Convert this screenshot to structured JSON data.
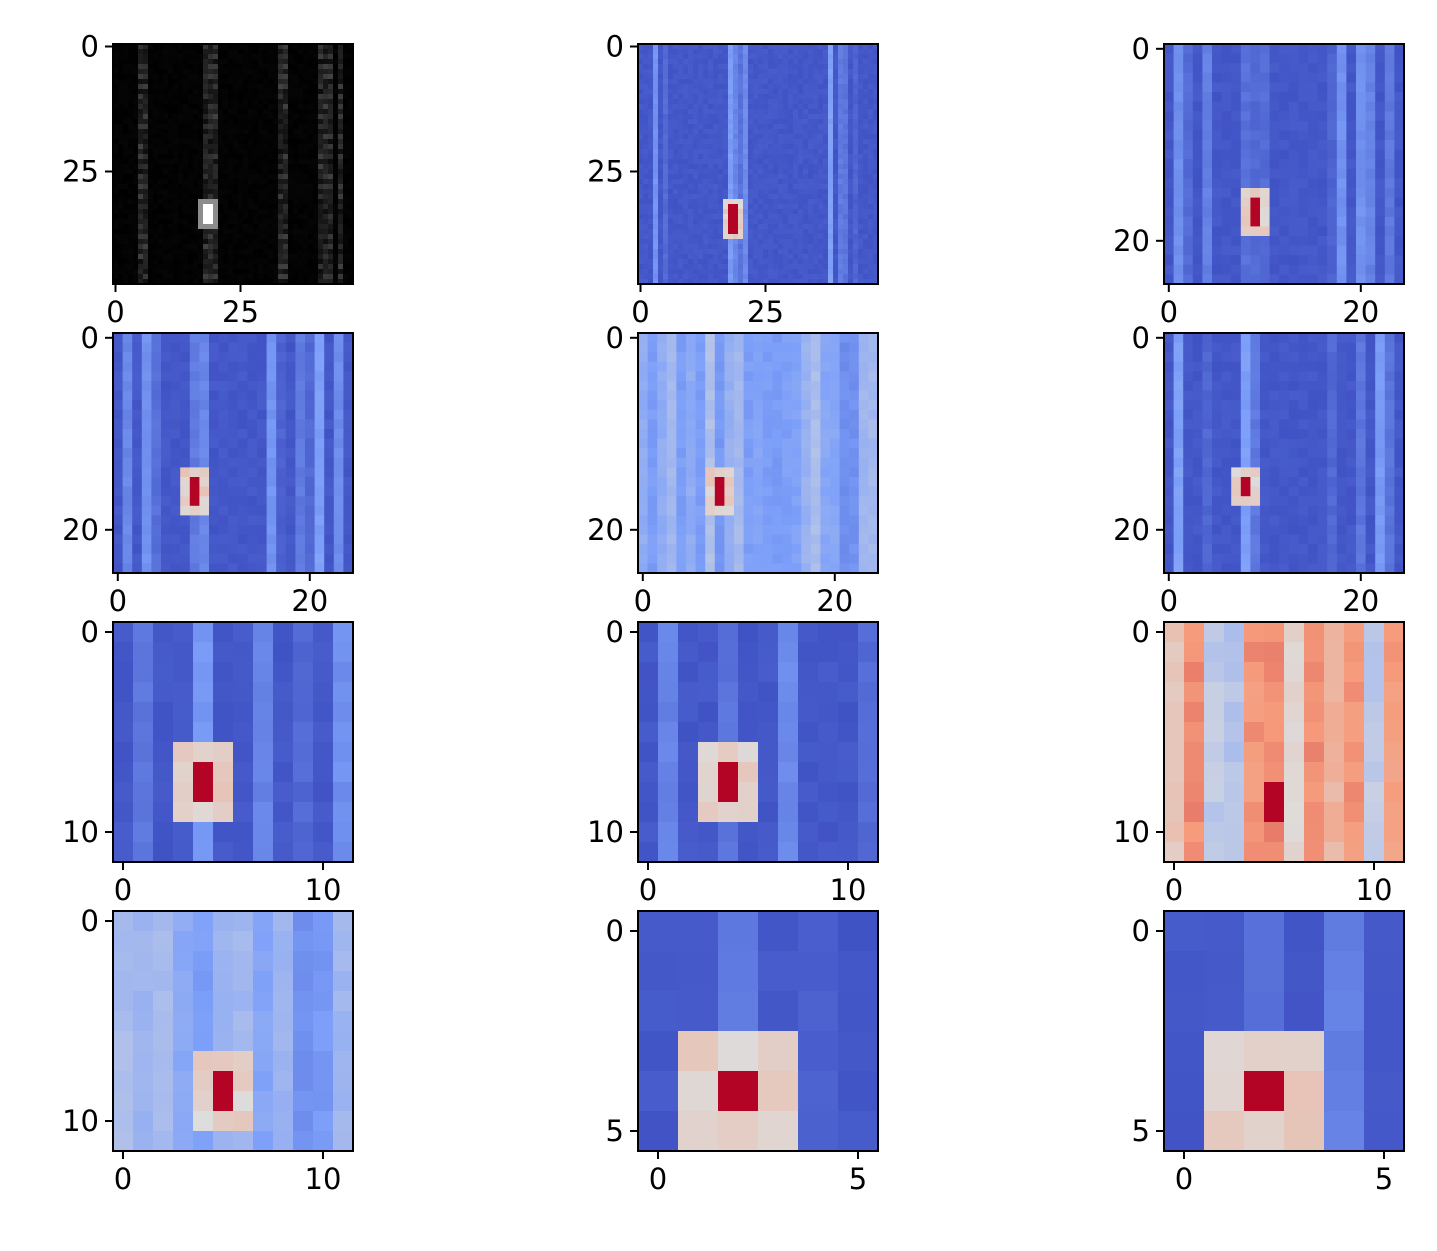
{
  "chart_data": [
    {
      "type": "heatmap",
      "colormap": "gray",
      "rows": 48,
      "cols": 48,
      "xlim": [
        -0.5,
        47.5
      ],
      "ylim": [
        47.5,
        -0.5
      ],
      "x_ticks": [
        0,
        25
      ],
      "y_ticks": [
        0,
        25
      ],
      "x_tick_labels": [
        "0",
        "25"
      ],
      "y_tick_labels": [
        "0",
        "25"
      ],
      "stripes": [
        5,
        6,
        18,
        19,
        20,
        33,
        34,
        41,
        42,
        43,
        45
      ],
      "hotspot": {
        "row": 32,
        "col": 18,
        "h": 4,
        "w": 2
      }
    },
    {
      "type": "heatmap",
      "colormap": "coolwarm",
      "rows": 48,
      "cols": 48,
      "xlim": [
        -0.5,
        47.5
      ],
      "ylim": [
        47.5,
        -0.5
      ],
      "x_ticks": [
        0,
        25
      ],
      "y_ticks": [
        0,
        25
      ],
      "x_tick_labels": [
        "0",
        "25"
      ],
      "y_tick_labels": [
        "0",
        "25"
      ],
      "stripes": [
        3,
        5,
        18,
        19,
        20,
        21,
        38,
        40,
        41,
        43
      ],
      "hotspot": {
        "row": 32,
        "col": 18,
        "h": 6,
        "w": 2
      }
    },
    {
      "type": "heatmap",
      "colormap": "coolwarm",
      "rows": 25,
      "cols": 25,
      "xlim": [
        -0.5,
        24.5
      ],
      "ylim": [
        24.5,
        -0.5
      ],
      "x_ticks": [
        0,
        20
      ],
      "y_ticks": [
        0,
        20
      ],
      "x_tick_labels": [
        "0",
        "20"
      ],
      "y_tick_labels": [
        "0",
        "20"
      ],
      "stripes": [
        1,
        2,
        4,
        8,
        9,
        10,
        17,
        18,
        20,
        21,
        23
      ],
      "hotspot": {
        "row": 16,
        "col": 9,
        "h": 3,
        "w": 1
      }
    },
    {
      "type": "heatmap",
      "colormap": "coolwarm",
      "rows": 25,
      "cols": 25,
      "xlim": [
        -0.5,
        24.5
      ],
      "ylim": [
        24.5,
        -0.5
      ],
      "x_ticks": [
        0,
        20
      ],
      "y_ticks": [
        0,
        20
      ],
      "x_tick_labels": [
        "0",
        "20"
      ],
      "y_tick_labels": [
        "0",
        "20"
      ],
      "stripes": [
        1,
        3,
        4,
        8,
        9,
        16,
        17,
        19,
        20,
        21,
        23
      ],
      "hotspot": {
        "row": 15,
        "col": 8,
        "h": 3,
        "w": 1
      }
    },
    {
      "type": "heatmap",
      "colormap": "coolwarm",
      "rows": 25,
      "cols": 25,
      "xlim": [
        -0.5,
        24.5
      ],
      "ylim": [
        24.5,
        -0.5
      ],
      "x_ticks": [
        0,
        20
      ],
      "y_ticks": [
        0,
        20
      ],
      "x_tick_labels": [
        "0",
        "20"
      ],
      "y_tick_labels": [
        "0",
        "20"
      ],
      "stripes": [
        0,
        1,
        2,
        3,
        5,
        7,
        8,
        9,
        10,
        12,
        14,
        16,
        17,
        18,
        19,
        20,
        21,
        22,
        23,
        24
      ],
      "hotspot": {
        "row": 15,
        "col": 8,
        "h": 3,
        "w": 1
      }
    },
    {
      "type": "heatmap",
      "colormap": "coolwarm",
      "rows": 25,
      "cols": 25,
      "xlim": [
        -0.5,
        24.5
      ],
      "ylim": [
        24.5,
        -0.5
      ],
      "x_ticks": [
        0,
        20
      ],
      "y_ticks": [
        0,
        20
      ],
      "x_tick_labels": [
        "0",
        "20"
      ],
      "y_tick_labels": [
        "0",
        "20"
      ],
      "stripes": [
        1,
        4,
        8,
        9,
        17,
        20,
        22,
        23
      ],
      "hotspot": {
        "row": 15,
        "col": 8,
        "h": 2,
        "w": 1
      }
    },
    {
      "type": "heatmap",
      "colormap": "coolwarm",
      "rows": 12,
      "cols": 12,
      "xlim": [
        -0.5,
        11.5
      ],
      "ylim": [
        11.5,
        -0.5
      ],
      "x_ticks": [
        0,
        10
      ],
      "y_ticks": [
        0,
        10
      ],
      "x_tick_labels": [
        "0",
        "10"
      ],
      "y_tick_labels": [
        "0",
        "10"
      ],
      "stripes": [
        1,
        4,
        7,
        9,
        11
      ],
      "hotspot": {
        "row": 7,
        "col": 4,
        "h": 2,
        "w": 1
      }
    },
    {
      "type": "heatmap",
      "colormap": "coolwarm",
      "rows": 12,
      "cols": 12,
      "xlim": [
        -0.5,
        11.5
      ],
      "ylim": [
        11.5,
        -0.5
      ],
      "x_ticks": [
        0,
        10
      ],
      "y_ticks": [
        0,
        10
      ],
      "x_tick_labels": [
        "0",
        "10"
      ],
      "y_tick_labels": [
        "0",
        "10"
      ],
      "stripes": [
        1,
        4,
        7,
        11
      ],
      "hotspot": {
        "row": 7,
        "col": 4,
        "h": 2,
        "w": 1
      }
    },
    {
      "type": "heatmap",
      "colormap": "coolwarm",
      "rows": 12,
      "cols": 12,
      "xlim": [
        -0.5,
        11.5
      ],
      "ylim": [
        11.5,
        -0.5
      ],
      "x_ticks": [
        0,
        10
      ],
      "y_ticks": [
        0,
        10
      ],
      "x_tick_labels": [
        "0",
        "10"
      ],
      "y_tick_labels": [
        "0",
        "10"
      ],
      "stripes": [
        0,
        1,
        2,
        3,
        4,
        5,
        6,
        7,
        8,
        9,
        10,
        11
      ],
      "hotspot": {
        "row": 8,
        "col": 5,
        "h": 2,
        "w": 1
      }
    },
    {
      "type": "heatmap",
      "colormap": "coolwarm",
      "rows": 12,
      "cols": 12,
      "xlim": [
        -0.5,
        11.5
      ],
      "ylim": [
        11.5,
        -0.5
      ],
      "x_ticks": [
        0,
        10
      ],
      "y_ticks": [
        0,
        10
      ],
      "x_tick_labels": [
        "0",
        "10"
      ],
      "y_tick_labels": [
        "0",
        "10"
      ],
      "stripes": [
        0,
        1,
        2,
        3,
        5,
        6,
        7,
        8,
        9,
        10,
        11
      ],
      "hotspot": {
        "row": 8,
        "col": 5,
        "h": 2,
        "w": 1
      }
    },
    {
      "type": "heatmap",
      "colormap": "coolwarm",
      "rows": 6,
      "cols": 6,
      "xlim": [
        -0.5,
        5.5
      ],
      "ylim": [
        5.5,
        -0.5
      ],
      "x_ticks": [
        0,
        5
      ],
      "y_ticks": [
        0,
        5
      ],
      "x_tick_labels": [
        "0",
        "5"
      ],
      "y_tick_labels": [
        "0",
        "5"
      ],
      "stripes": [
        2,
        4
      ],
      "hotspot": {
        "row": 4,
        "col": 2,
        "h": 1,
        "w": 1
      }
    },
    {
      "type": "heatmap",
      "colormap": "coolwarm",
      "rows": 6,
      "cols": 6,
      "xlim": [
        -0.5,
        5.5
      ],
      "ylim": [
        5.5,
        -0.5
      ],
      "x_ticks": [
        0,
        5
      ],
      "y_ticks": [
        0,
        5
      ],
      "x_tick_labels": [
        "0",
        "5"
      ],
      "y_tick_labels": [
        "0",
        "5"
      ],
      "stripes": [
        2,
        4
      ],
      "hotspot": {
        "row": 4,
        "col": 2,
        "h": 1,
        "w": 1
      }
    }
  ]
}
